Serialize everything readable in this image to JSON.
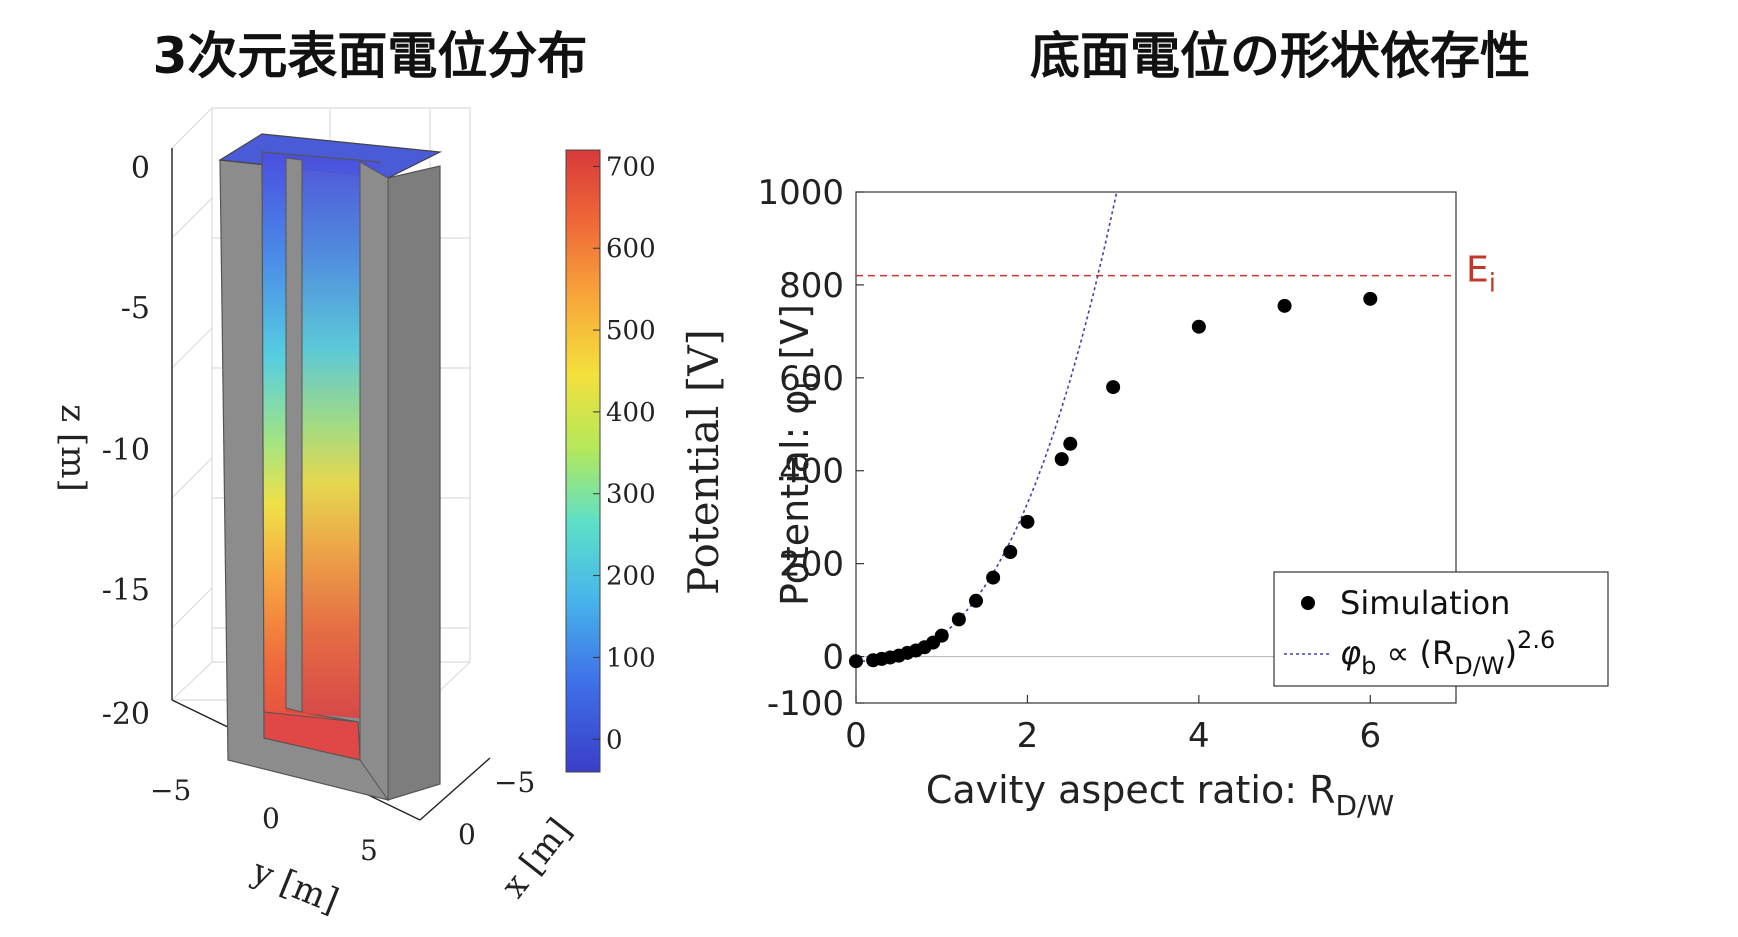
{
  "titles": {
    "left": "3次元表面電位分布",
    "right": "底面電位の形状依存性"
  },
  "colors": {
    "wall": "#8c8c8c",
    "top": "#4a5bd8",
    "grid": "#dcdcdc",
    "threshold": "#c0392b",
    "fit": "#4040a8",
    "points": "#000000"
  },
  "chart_data": [
    {
      "type": "surface3d",
      "title": "3次元表面電位分布",
      "zlabel": "z [m]",
      "ylabel": "y [m]",
      "xlabel": "x [m]",
      "z_ticks": [
        "0",
        "-5",
        "-10",
        "-15",
        "-20"
      ],
      "y_ticks": [
        "−5",
        "0",
        "5"
      ],
      "x_ticks": [
        "−5",
        "0"
      ],
      "colorbar": {
        "label": "Potential [V]",
        "ticks": [
          "700",
          "600",
          "500",
          "400",
          "300",
          "200",
          "100",
          "0"
        ],
        "range": [
          -40,
          720
        ],
        "colormap": "jet"
      },
      "cavity_potential": [
        {
          "depth": 0,
          "potential": -30
        },
        {
          "depth": -5,
          "potential": 80
        },
        {
          "depth": -10,
          "potential": 300
        },
        {
          "depth": -15,
          "potential": 520
        },
        {
          "depth": -20,
          "potential": 690
        }
      ]
    },
    {
      "type": "scatter",
      "title": "底面電位の形状依存性",
      "xlabel": "Cavity aspect ratio: R",
      "xlabel_sub": "D/W",
      "ylabel": "Potential: φ",
      "ylabel_sub": "b",
      "ylabel_unit": " [V]",
      "xlim": [
        0,
        7
      ],
      "ylim": [
        -100,
        1000
      ],
      "x_ticks": [
        "0",
        "2",
        "4",
        "6"
      ],
      "y_ticks": [
        "1000",
        "800",
        "600",
        "400",
        "200",
        "0",
        "-100"
      ],
      "threshold": {
        "value": 820,
        "label": "E",
        "label_sub": "i"
      },
      "series": [
        {
          "name": "Simulation",
          "points": [
            [
              0,
              -10
            ],
            [
              0.2,
              -8
            ],
            [
              0.3,
              -5
            ],
            [
              0.4,
              -2
            ],
            [
              0.5,
              2
            ],
            [
              0.6,
              8
            ],
            [
              0.7,
              13
            ],
            [
              0.8,
              20
            ],
            [
              0.9,
              30
            ],
            [
              1.0,
              45
            ],
            [
              1.2,
              80
            ],
            [
              1.4,
              120
            ],
            [
              1.6,
              170
            ],
            [
              1.8,
              225
            ],
            [
              2.0,
              290
            ],
            [
              2.4,
              425
            ],
            [
              2.5,
              458
            ],
            [
              3.0,
              580
            ],
            [
              4.0,
              710
            ],
            [
              5.0,
              755
            ],
            [
              6.0,
              770
            ]
          ]
        }
      ],
      "fit": {
        "label": "φ",
        "label_sub": "b",
        "label_mid": " ∝ (R",
        "label_sub2": "D/W",
        "label_end": ")",
        "label_sup": "2.6",
        "exponent": 2.6,
        "coefficient": 56
      },
      "legend_position": "lower-right"
    }
  ]
}
